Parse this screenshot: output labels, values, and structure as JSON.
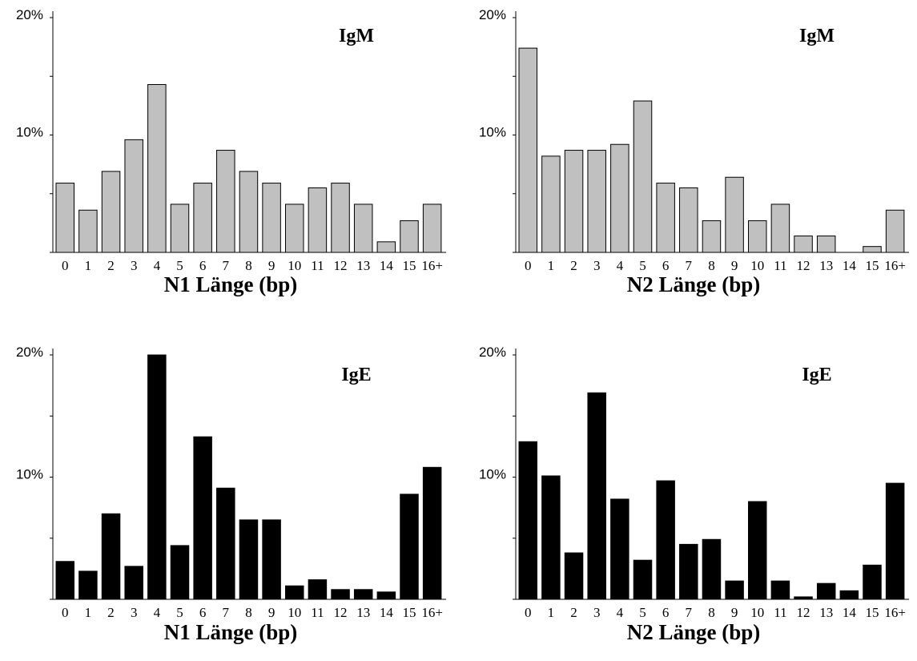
{
  "chart_data": [
    {
      "type": "bar",
      "panel_label": "IgM",
      "xlabel": "N1 Länge (bp)",
      "categories": [
        "0",
        "1",
        "2",
        "3",
        "4",
        "5",
        "6",
        "7",
        "8",
        "9",
        "10",
        "11",
        "12",
        "13",
        "14",
        "15",
        "16+"
      ],
      "values": [
        5.9,
        3.6,
        6.9,
        9.6,
        14.3,
        4.1,
        5.9,
        8.7,
        6.9,
        5.9,
        4.1,
        5.5,
        5.9,
        4.1,
        0.9,
        2.7,
        4.1
      ],
      "ylim": [
        0,
        20
      ],
      "yticks": [
        0,
        5,
        10,
        15,
        20
      ],
      "ytick_labels": [
        {
          "value": 10,
          "label": "10%"
        },
        {
          "value": 20,
          "label": "20%"
        }
      ],
      "bar_color": "#c0c0c0",
      "grid": false
    },
    {
      "type": "bar",
      "panel_label": "IgM",
      "xlabel": "N2 Länge (bp)",
      "categories": [
        "0",
        "1",
        "2",
        "3",
        "4",
        "5",
        "6",
        "7",
        "8",
        "9",
        "10",
        "11",
        "12",
        "13",
        "14",
        "15",
        "16+"
      ],
      "values": [
        17.4,
        8.2,
        8.7,
        8.7,
        9.2,
        12.9,
        5.9,
        5.5,
        2.7,
        6.4,
        2.7,
        4.1,
        1.4,
        1.4,
        0,
        0.5,
        3.6
      ],
      "ylim": [
        0,
        20
      ],
      "yticks": [
        0,
        5,
        10,
        15,
        20
      ],
      "ytick_labels": [
        {
          "value": 10,
          "label": "10%"
        },
        {
          "value": 20,
          "label": "20%"
        }
      ],
      "bar_color": "#c0c0c0",
      "grid": false
    },
    {
      "type": "bar",
      "panel_label": "IgE",
      "xlabel": "N1 Länge (bp)",
      "categories": [
        "0",
        "1",
        "2",
        "3",
        "4",
        "5",
        "6",
        "7",
        "8",
        "9",
        "10",
        "11",
        "12",
        "13",
        "14",
        "15",
        "16+"
      ],
      "values": [
        3.1,
        2.3,
        7.0,
        2.7,
        20.0,
        4.4,
        13.3,
        9.1,
        6.5,
        6.5,
        1.1,
        1.6,
        0.8,
        0.8,
        0.6,
        8.6,
        10.8
      ],
      "ylim": [
        0,
        20
      ],
      "yticks": [
        0,
        5,
        10,
        15,
        20
      ],
      "ytick_labels": [
        {
          "value": 10,
          "label": "10%"
        },
        {
          "value": 20,
          "label": "20%"
        }
      ],
      "bar_color": "#000000",
      "grid": false
    },
    {
      "type": "bar",
      "panel_label": "IgE",
      "xlabel": "N2 Länge (bp)",
      "categories": [
        "0",
        "1",
        "2",
        "3",
        "4",
        "5",
        "6",
        "7",
        "8",
        "9",
        "10",
        "11",
        "12",
        "13",
        "14",
        "15",
        "16+"
      ],
      "values": [
        12.9,
        10.1,
        3.8,
        16.9,
        8.2,
        3.2,
        9.7,
        4.5,
        4.9,
        1.5,
        8.0,
        1.5,
        0.2,
        1.3,
        0.7,
        2.8,
        9.5
      ],
      "ylim": [
        0,
        20
      ],
      "yticks": [
        0,
        5,
        10,
        15,
        20
      ],
      "ytick_labels": [
        {
          "value": 10,
          "label": "10%"
        },
        {
          "value": 20,
          "label": "20%"
        }
      ],
      "bar_color": "#000000",
      "grid": false
    }
  ]
}
